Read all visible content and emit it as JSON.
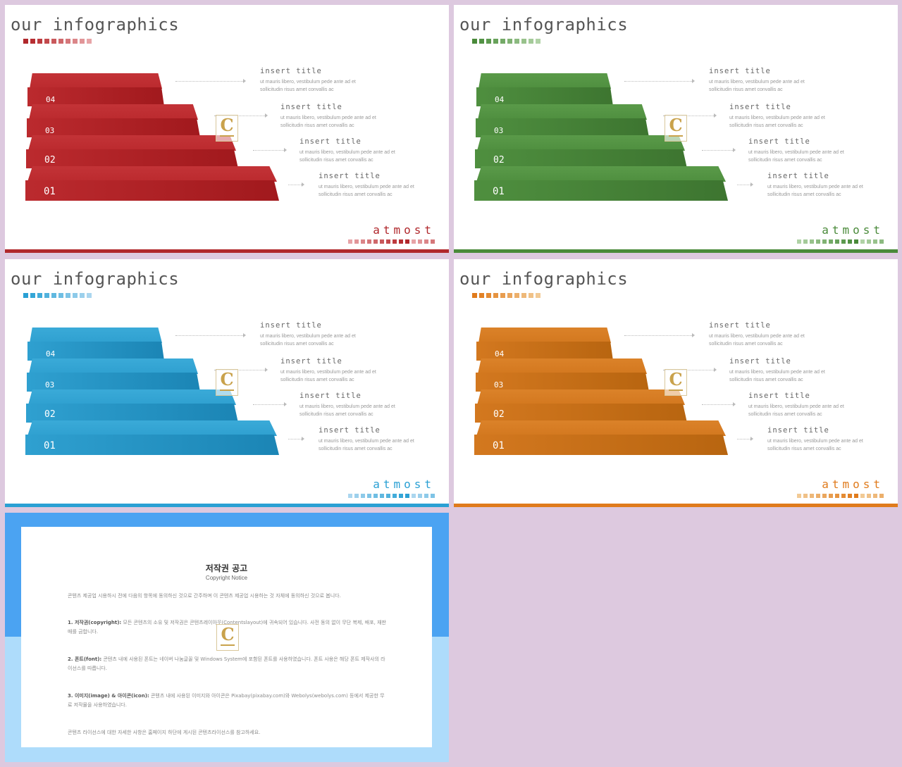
{
  "slides": [
    {
      "title": "our infographics",
      "brand": "atmost",
      "theme": {
        "light": "#bb2a2e",
        "dark": "#a1191d",
        "light_top": "#c33337",
        "dark_top": "#b02125",
        "accent": "#b0282c",
        "squares": [
          "#b0282c",
          "#b72e32",
          "#bd3b3f",
          "#c34a4d",
          "#c9595c",
          "#cf686b",
          "#d5777a",
          "#db8689",
          "#e19598",
          "#e7a4a7"
        ]
      },
      "steps": [
        {
          "label": "04"
        },
        {
          "label": "03"
        },
        {
          "label": "02"
        },
        {
          "label": "01"
        }
      ],
      "items": [
        {
          "title": "insert title",
          "body1": "ut mauris libero, vestibulum pede ante ad et",
          "body2": "sollicitudin risus amet convallis ac"
        },
        {
          "title": "insert title",
          "body1": "ut mauris libero, vestibulum pede ante ad et",
          "body2": "sollicitudin risus amet convallis ac"
        },
        {
          "title": "insert title",
          "body1": "ut mauris libero, vestibulum pede ante ad et",
          "body2": "sollicitudin risus amet convallis ac"
        },
        {
          "title": "insert title",
          "body1": "ut mauris libero, vestibulum pede ante ad et",
          "body2": "sollicitudin risus amet convallis ac"
        }
      ]
    },
    {
      "title": "our infographics",
      "brand": "atmost",
      "theme": {
        "light": "#4f8f3f",
        "dark": "#3d7530",
        "light_top": "#5a9a49",
        "dark_top": "#46813a",
        "accent": "#4a8a3a",
        "squares": [
          "#4a8a3a",
          "#529244",
          "#5d9a4f",
          "#68a25b",
          "#74aa67",
          "#80b273",
          "#8cba80",
          "#98c28c",
          "#a4ca99",
          "#b0d2a6"
        ]
      },
      "steps": [
        {
          "label": "04"
        },
        {
          "label": "03"
        },
        {
          "label": "02"
        },
        {
          "label": "01"
        }
      ],
      "items": [
        {
          "title": "insert title",
          "body1": "ut mauris libero, vestibulum pede ante ad et",
          "body2": "sollicitudin risus amet convallis ac"
        },
        {
          "title": "insert title",
          "body1": "ut mauris libero, vestibulum pede ante ad et",
          "body2": "sollicitudin risus amet convallis ac"
        },
        {
          "title": "insert title",
          "body1": "ut mauris libero, vestibulum pede ante ad et",
          "body2": "sollicitudin risus amet convallis ac"
        },
        {
          "title": "insert title",
          "body1": "ut mauris libero, vestibulum pede ante ad et",
          "body2": "sollicitudin risus amet convallis ac"
        }
      ]
    },
    {
      "title": "our infographics",
      "brand": "atmost",
      "theme": {
        "light": "#2fa0d0",
        "dark": "#1b85b5",
        "light_top": "#3aaad8",
        "dark_top": "#2592c2",
        "accent": "#2aa0d4",
        "squares": [
          "#2aa0d4",
          "#34a6d7",
          "#42acda",
          "#51b2dd",
          "#60b8e0",
          "#6fbee3",
          "#7ec4e6",
          "#8dcae9",
          "#9cd0ec",
          "#abd6ef"
        ]
      },
      "steps": [
        {
          "label": "04"
        },
        {
          "label": "03"
        },
        {
          "label": "02"
        },
        {
          "label": "01"
        }
      ],
      "items": [
        {
          "title": "insert title",
          "body1": "ut mauris libero, vestibulum pede ante ad et",
          "body2": "sollicitudin risus amet convallis ac"
        },
        {
          "title": "insert title",
          "body1": "ut mauris libero, vestibulum pede ante ad et",
          "body2": "sollicitudin risus amet convallis ac"
        },
        {
          "title": "insert title",
          "body1": "ut mauris libero, vestibulum pede ante ad et",
          "body2": "sollicitudin risus amet convallis ac"
        },
        {
          "title": "insert title",
          "body1": "ut mauris libero, vestibulum pede ante ad et",
          "body2": "sollicitudin risus amet convallis ac"
        }
      ]
    },
    {
      "title": "our infographics",
      "brand": "atmost",
      "theme": {
        "light": "#d3781f",
        "dark": "#b86510",
        "light_top": "#db8229",
        "dark_top": "#c46f18",
        "accent": "#e07b1c",
        "squares": [
          "#e07b1c",
          "#e28226",
          "#e48b33",
          "#e69441",
          "#e89d4f",
          "#eaa65d",
          "#ecaf6b",
          "#eeb879",
          "#f0c187",
          "#f2ca95"
        ]
      },
      "steps": [
        {
          "label": "04"
        },
        {
          "label": "03"
        },
        {
          "label": "02"
        },
        {
          "label": "01"
        }
      ],
      "items": [
        {
          "title": "insert title",
          "body1": "ut mauris libero, vestibulum pede ante ad et",
          "body2": "sollicitudin risus amet convallis ac"
        },
        {
          "title": "insert title",
          "body1": "ut mauris libero, vestibulum pede ante ad et",
          "body2": "sollicitudin risus amet convallis ac"
        },
        {
          "title": "insert title",
          "body1": "ut mauris libero, vestibulum pede ante ad et",
          "body2": "sollicitudin risus amet convallis ac"
        },
        {
          "title": "insert title",
          "body1": "ut mauris libero, vestibulum pede ante ad et",
          "body2": "sollicitudin risus amet convallis ac"
        }
      ]
    }
  ],
  "logo": {
    "letter": "C"
  },
  "copyright": {
    "title": "저작권 공고",
    "subtitle": "Copyright Notice",
    "intro": "콘텐츠 제공업 시용하시 전에 다음의 항목에 동의하신 것으로 간주하며 이 콘텐츠 제공업 시용하는 것 자체에 동의하신 것으로 봅니다.",
    "p1_label": "1. 저작권(copyright):",
    "p1_text": "모든 콘텐츠의 소유 및 저작권은 콘텐츠레이아웃(Contentslayout)에 귀속되어 있습니다. 사전 동의 없이 무단 복제, 배포, 재판매를 금합니다.",
    "p2_label": "2. 폰트(font):",
    "p2_text": "콘텐츠 내에 사용된 폰트는 네이버 나눔글꼴 및 Windows System에 포함된 폰트를 사용하였습니다. 폰트 사용은 해당 폰트 제작사의 라이선스를 따릅니다.",
    "p3_label": "3. 이미지(image) & 아이콘(icon):",
    "p3_text": "콘텐츠 내에 사용된 이미지와 아이콘은 Pixabay(pixabay.com)와 Webolys(webolys.com) 등에서 제공한 무료 저작물을 사용하였습니다.",
    "closing": "콘텐츠 라이선스에 대한 자세한 사항은 홈페이지 하단에 게시된 콘텐츠라이선스를 참고하세요."
  }
}
